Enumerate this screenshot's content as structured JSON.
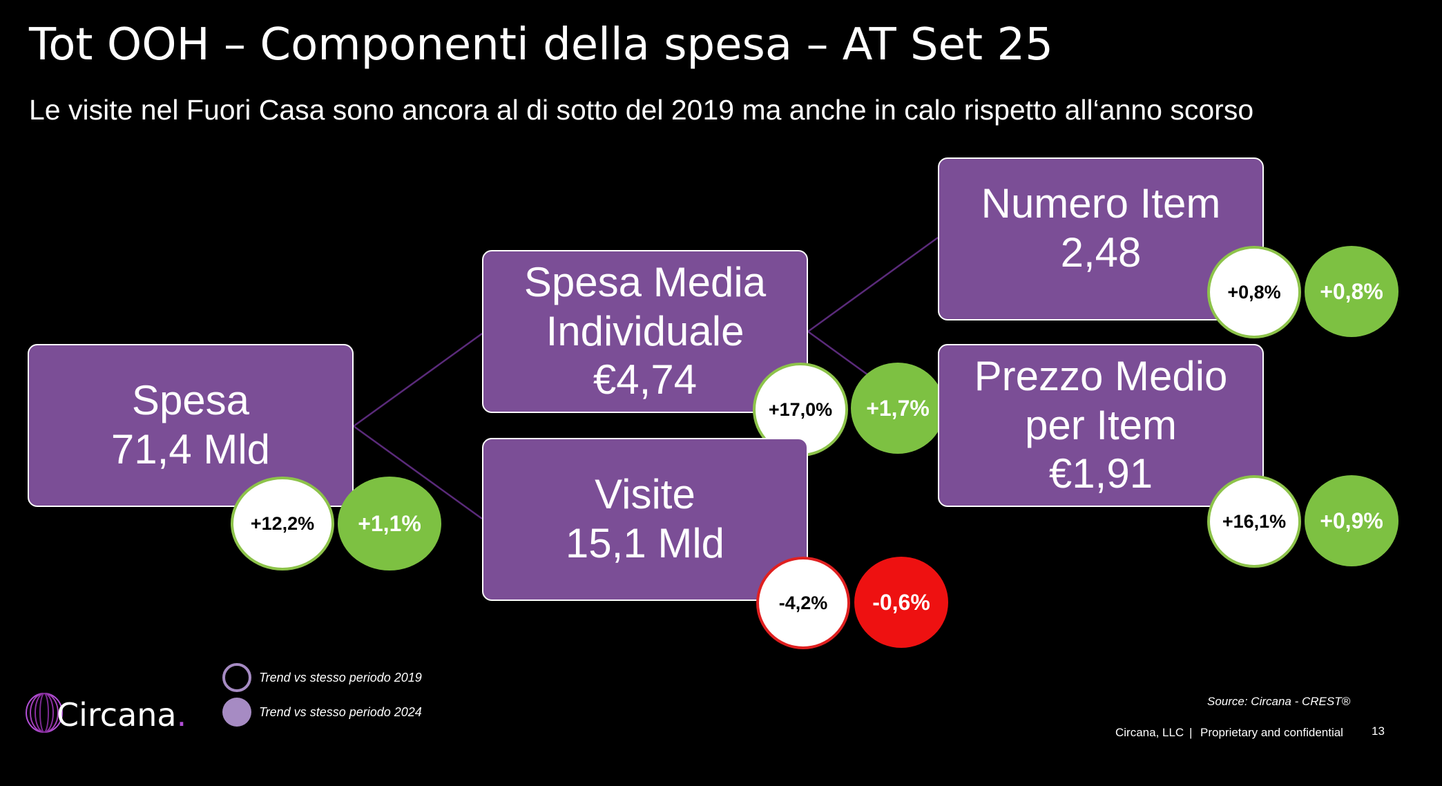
{
  "title": "Tot OOH – Componenti della spesa – AT Set 25",
  "subtitle": "Le visite nel Fuori Casa sono ancora al di sotto del 2019 ma anche in calo rispetto all‘anno scorso",
  "nodes": {
    "spesa": {
      "line1": "Spesa",
      "line2": "71,4 Mld",
      "trend_2019": "+12,2%",
      "trend_2024": "+1,1%"
    },
    "spesa_media": {
      "line1": "Spesa Media",
      "line2": "Individuale",
      "line3": "€4,74",
      "trend_2019": "+17,0%",
      "trend_2024": "+1,7%"
    },
    "visite": {
      "line1": "Visite",
      "line2": "15,1 Mld",
      "trend_2019": "-4,2%",
      "trend_2024": "-0,6%"
    },
    "numero_item": {
      "line1": "Numero Item",
      "line2": "2,48",
      "trend_2019": "+0,8%",
      "trend_2024": "+0,8%"
    },
    "prezzo_medio": {
      "line1": "Prezzo Medio",
      "line2": "per Item",
      "line3": "€1,91",
      "trend_2019": "+16,1%",
      "trend_2024": "+0,9%"
    }
  },
  "legend": {
    "trend_2019": "Trend vs stesso periodo 2019",
    "trend_2024": "Trend vs stesso periodo 2024"
  },
  "footer": {
    "source": "Source: Circana  - CREST®",
    "company": "Circana, LLC",
    "separator": "|",
    "confidential": "Proprietary and confidential",
    "page_number": "13"
  },
  "logo": {
    "name": "Circana",
    "dot": "."
  },
  "colors": {
    "box_fill": "#7b4e96",
    "positive": "#7dc142",
    "negative": "#ee1111",
    "connector": "#5a2a7a",
    "legend": "#a68bc3",
    "background": "#000000"
  }
}
